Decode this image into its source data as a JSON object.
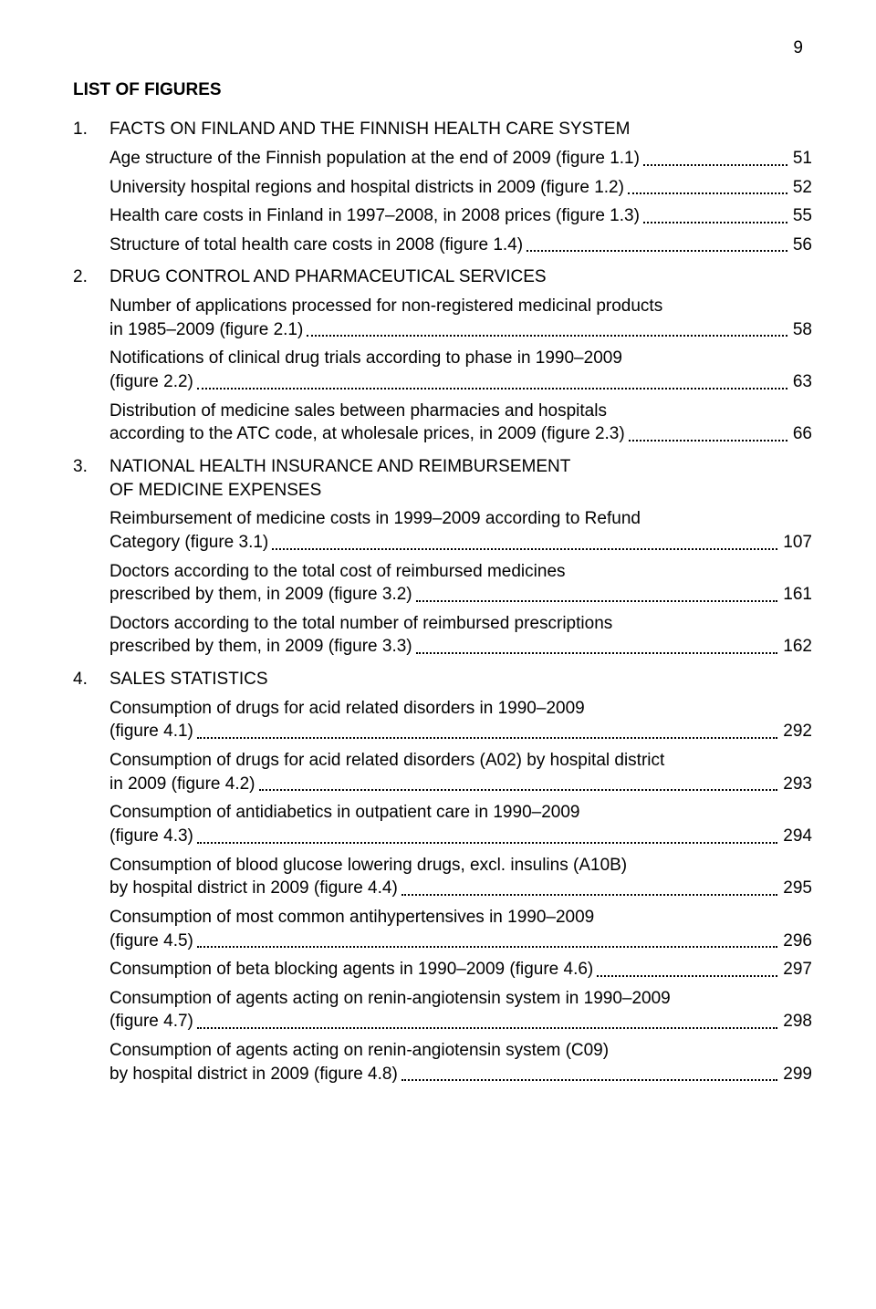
{
  "page_number": "9",
  "title": "LIST OF FIGURES",
  "sections": [
    {
      "num": "1.",
      "heading": "FACTS ON FINLAND AND THE FINNISH HEALTH CARE SYSTEM",
      "entries": [
        {
          "line1": "Age structure of the Finnish population at the end of 2009 (figure 1.1)",
          "page": "51"
        },
        {
          "line1": "University hospital regions and hospital districts in 2009 (figure 1.2)",
          "page": "52"
        },
        {
          "line1": "Health care costs in Finland in 1997–2008, in 2008 prices (figure 1.3)",
          "page": "55"
        },
        {
          "line1": "Structure of total health care costs in 2008 (figure 1.4)",
          "page": "56"
        }
      ]
    },
    {
      "num": "2.",
      "heading": "DRUG CONTROL AND PHARMACEUTICAL SERVICES",
      "entries": [
        {
          "pre": "Number of applications processed for non-registered medicinal products",
          "line1": "in 1985–2009 (figure 2.1)",
          "page": "58"
        },
        {
          "pre": "Notifications of clinical drug trials according to phase in 1990–2009",
          "line1": "(figure 2.2)",
          "page": "63"
        },
        {
          "pre": "Distribution of medicine sales between pharmacies and hospitals",
          "line1": "according to the ATC code, at wholesale prices, in 2009 (figure 2.3)",
          "page": "66"
        }
      ]
    },
    {
      "num": "3.",
      "heading_pre": "NATIONAL HEALTH INSURANCE AND REIMBURSEMENT",
      "heading": "OF MEDICINE EXPENSES",
      "entries": [
        {
          "pre": "Reimbursement of medicine costs in 1999–2009 according to Refund",
          "line1": "Category (figure 3.1)",
          "page": "107"
        },
        {
          "pre": "Doctors according to the total cost of reimbursed medicines",
          "line1": "prescribed by them, in 2009 (figure 3.2)",
          "page": "161"
        },
        {
          "pre": "Doctors according to the total number of reimbursed prescriptions",
          "line1": "prescribed by them, in 2009 (figure 3.3)",
          "page": "162"
        }
      ]
    },
    {
      "num": "4.",
      "heading": "SALES STATISTICS",
      "entries": [
        {
          "pre": "Consumption of drugs for acid related disorders in 1990–2009",
          "line1": "(figure 4.1)",
          "page": "292"
        },
        {
          "pre": "Consumption of drugs for acid related disorders (A02) by hospital district",
          "line1": "in 2009 (figure 4.2)",
          "page": "293"
        },
        {
          "pre": "Consumption of antidiabetics in outpatient care in 1990–2009",
          "line1": "(figure 4.3)",
          "page": "294"
        },
        {
          "pre": "Consumption of blood glucose lowering drugs, excl. insulins (A10B)",
          "line1": "by hospital district in 2009 (figure 4.4)",
          "page": "295"
        },
        {
          "pre": "Consumption of most common antihypertensives in 1990–2009",
          "line1": "(figure 4.5)",
          "page": "296"
        },
        {
          "line1": "Consumption of beta blocking agents in 1990–2009 (figure 4.6)",
          "page": "297"
        },
        {
          "pre": "Consumption of agents acting on renin-angiotensin system in 1990–2009",
          "line1": "(figure 4.7)",
          "page": "298"
        },
        {
          "pre": "Consumption of agents acting on renin-angiotensin system (C09)",
          "line1": "by hospital district in 2009 (figure 4.8)",
          "page": "299"
        }
      ]
    }
  ]
}
